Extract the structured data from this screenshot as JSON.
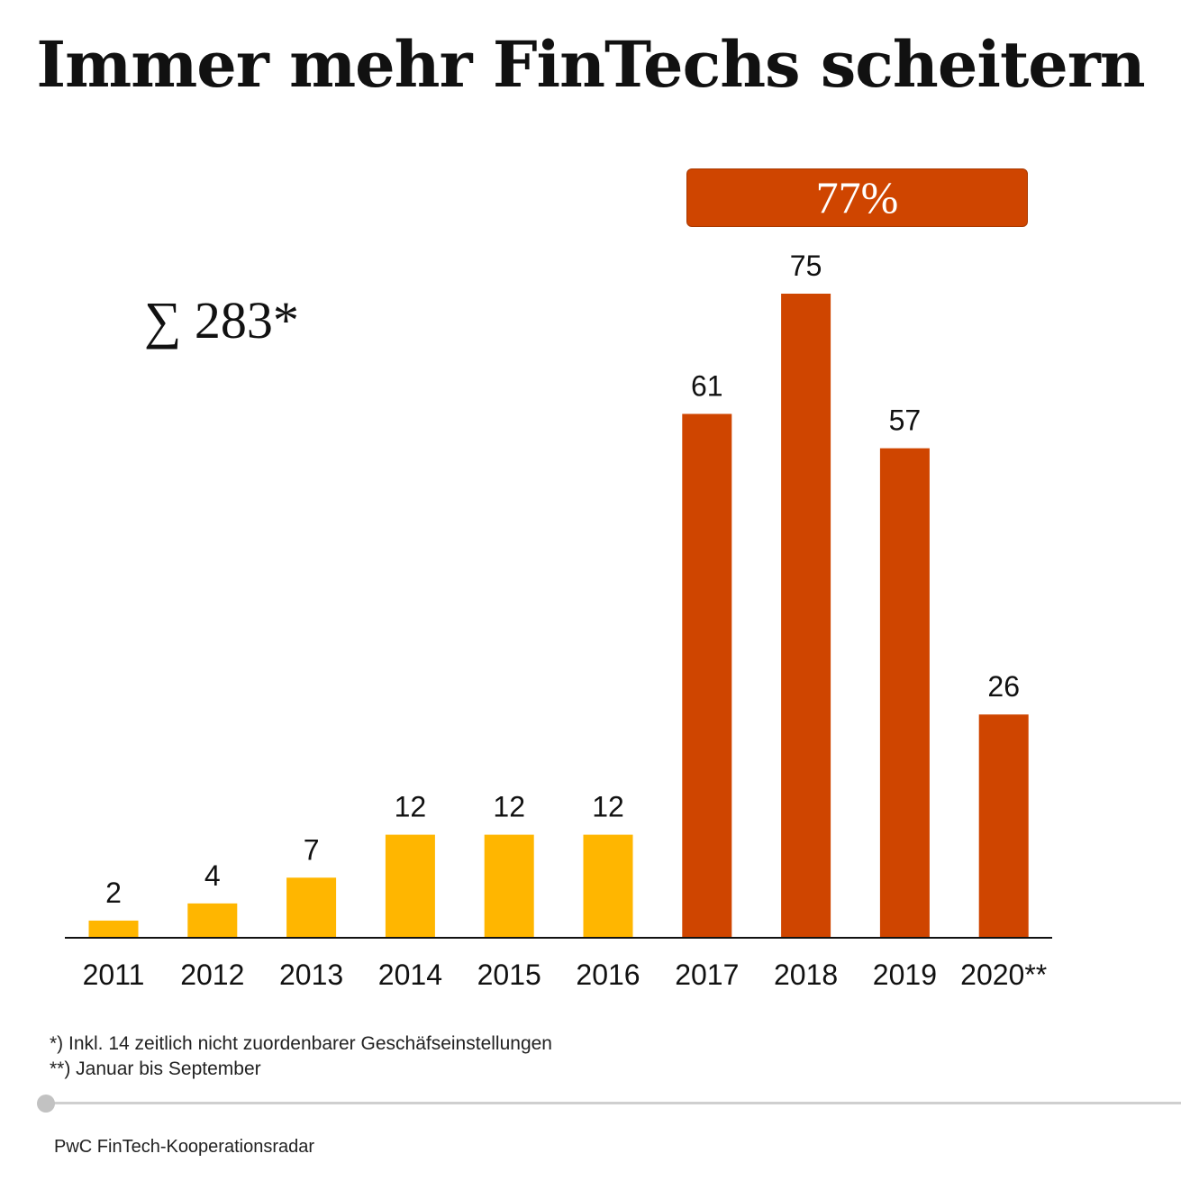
{
  "title": "Immer mehr FinTechs scheitern",
  "total_label": "∑ 283*",
  "badge": {
    "label": "77%"
  },
  "footnotes": [
    "*) Inkl. 14 zeitlich nicht zuordenbarer Geschäfseinstellungen",
    "**) Januar bis September"
  ],
  "source": "PwC FinTech-Kooperationsradar",
  "colors": {
    "early": "#ffb600",
    "late": "#cf4500",
    "badge": "#cf4500"
  },
  "chart_data": {
    "type": "bar",
    "title": "Immer mehr FinTechs scheitern",
    "categories": [
      "2011",
      "2012",
      "2013",
      "2014",
      "2015",
      "2016",
      "2017",
      "2018",
      "2019",
      "2020**"
    ],
    "values": [
      2,
      4,
      7,
      12,
      12,
      12,
      61,
      75,
      57,
      26
    ],
    "bar_colors": [
      "#ffb600",
      "#ffb600",
      "#ffb600",
      "#ffb600",
      "#ffb600",
      "#ffb600",
      "#cf4500",
      "#cf4500",
      "#cf4500",
      "#cf4500"
    ],
    "ylim": [
      0,
      75
    ],
    "grid": false,
    "data_labels": true,
    "annotation": {
      "label": "77%",
      "covers": [
        "2017",
        "2018",
        "2019",
        "2020**"
      ]
    }
  }
}
